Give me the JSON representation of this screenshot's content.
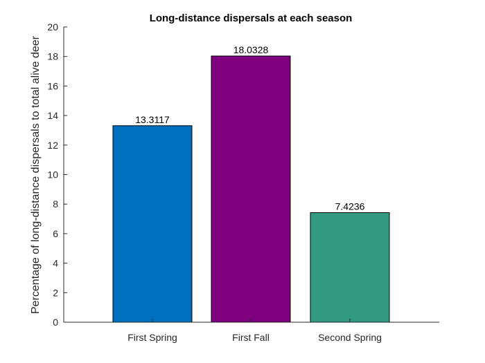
{
  "chart_data": {
    "type": "bar",
    "title": "Long-distance dispersals at each season",
    "xlabel": "",
    "ylabel": "Percentage of long-distance dispersals to total alive deer",
    "categories": [
      "First Spring",
      "First Fall",
      "Second Spring"
    ],
    "values": [
      13.3117,
      18.0328,
      7.4236
    ],
    "data_labels": [
      "13.3117",
      "18.0328",
      "7.4236"
    ],
    "colors": [
      "#0072BD",
      "#7E007E",
      "#339A82"
    ],
    "ylim": [
      0,
      20
    ],
    "yticks": [
      0,
      2,
      4,
      6,
      8,
      10,
      12,
      14,
      16,
      18,
      20
    ],
    "grid": false,
    "legend": "none"
  }
}
